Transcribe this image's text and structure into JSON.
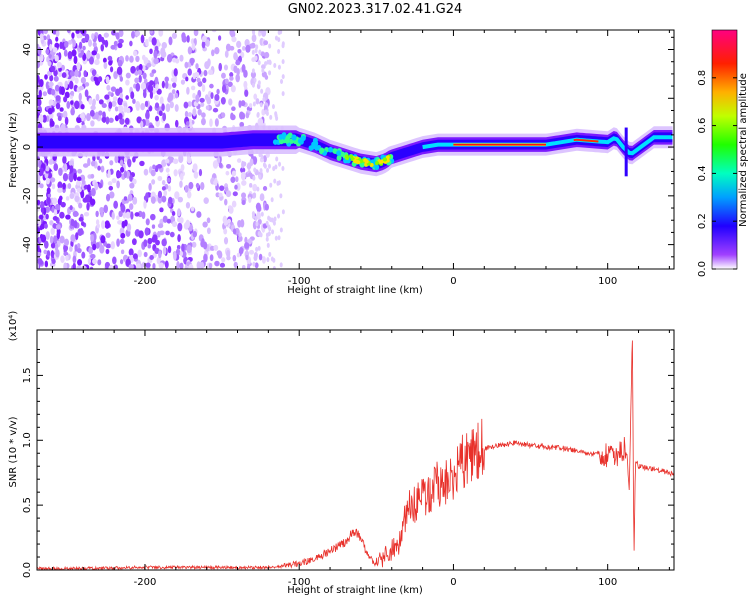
{
  "title": "GN02.2023.317.02.41.G24",
  "chart_data": [
    {
      "type": "heatmap",
      "title": "",
      "xlabel": "Height of straight line (km)",
      "ylabel": "Frequency (Hz)",
      "xlim": [
        -270,
        143
      ],
      "ylim": [
        -50,
        48
      ],
      "xticks": [
        -200,
        -100,
        0,
        100
      ],
      "yticks": [
        -40,
        -20,
        0,
        20,
        40
      ],
      "colorbar": {
        "label": "Normalized spectral amplitude",
        "range": [
          0.0,
          1.0
        ],
        "ticks": [
          0.0,
          0.2,
          0.4,
          0.6,
          0.8
        ],
        "colors": [
          "#ffffff",
          "#8000ff",
          "#0000ff",
          "#00c8ff",
          "#00ff80",
          "#80ff00",
          "#ffff00",
          "#ff8000",
          "#ff0000",
          "#ff0080"
        ]
      },
      "ridge": {
        "x": [
          -270,
          -240,
          -200,
          -180,
          -150,
          -130,
          -110,
          -100,
          -90,
          -80,
          -70,
          -60,
          -50,
          -45,
          -40,
          -30,
          -20,
          -10,
          0,
          20,
          40,
          60,
          80,
          100,
          105,
          110,
          115,
          130,
          143
        ],
        "frequency": [
          2,
          2,
          2,
          2,
          2,
          3,
          3,
          3,
          1,
          -2,
          -4,
          -6,
          -7,
          -6,
          -4,
          -2,
          0,
          1,
          1,
          1,
          1,
          1,
          3,
          2,
          4,
          0,
          -3,
          4,
          4
        ]
      }
    },
    {
      "type": "line",
      "title": "",
      "xlabel": "Height of straight line (km)",
      "ylabel": "SNR (10 * v/v)",
      "y_multiplier": "(x10⁴)",
      "xlim": [
        -270,
        143
      ],
      "ylim": [
        0,
        1.85
      ],
      "xticks": [
        -200,
        -100,
        0,
        100
      ],
      "yticks": [
        "0.0",
        "0.5",
        "1.0",
        "1.5"
      ],
      "series": [
        {
          "color": "#e8302a",
          "x": [
            -270,
            -250,
            -200,
            -150,
            -120,
            -110,
            -100,
            -90,
            -80,
            -75,
            -70,
            -65,
            -60,
            -55,
            -50,
            -45,
            -40,
            -35,
            -30,
            -25,
            -20,
            -15,
            -10,
            -5,
            0,
            5,
            10,
            15,
            20,
            25,
            30,
            35,
            40,
            50,
            60,
            70,
            80,
            90,
            95,
            100,
            105,
            108,
            112,
            114,
            116,
            117,
            118,
            120,
            130,
            143
          ],
          "y": [
            0.01,
            0.01,
            0.02,
            0.02,
            0.02,
            0.03,
            0.05,
            0.08,
            0.15,
            0.18,
            0.22,
            0.3,
            0.25,
            0.1,
            0.05,
            0.1,
            0.15,
            0.2,
            0.45,
            0.5,
            0.55,
            0.58,
            0.7,
            0.65,
            0.75,
            0.82,
            0.88,
            0.9,
            0.93,
            0.95,
            0.96,
            0.97,
            0.98,
            0.96,
            0.95,
            0.94,
            0.92,
            0.9,
            0.9,
            0.88,
            0.85,
            0.9,
            0.95,
            0.6,
            1.85,
            0.05,
            0.85,
            0.8,
            0.78,
            0.74
          ]
        }
      ]
    }
  ]
}
